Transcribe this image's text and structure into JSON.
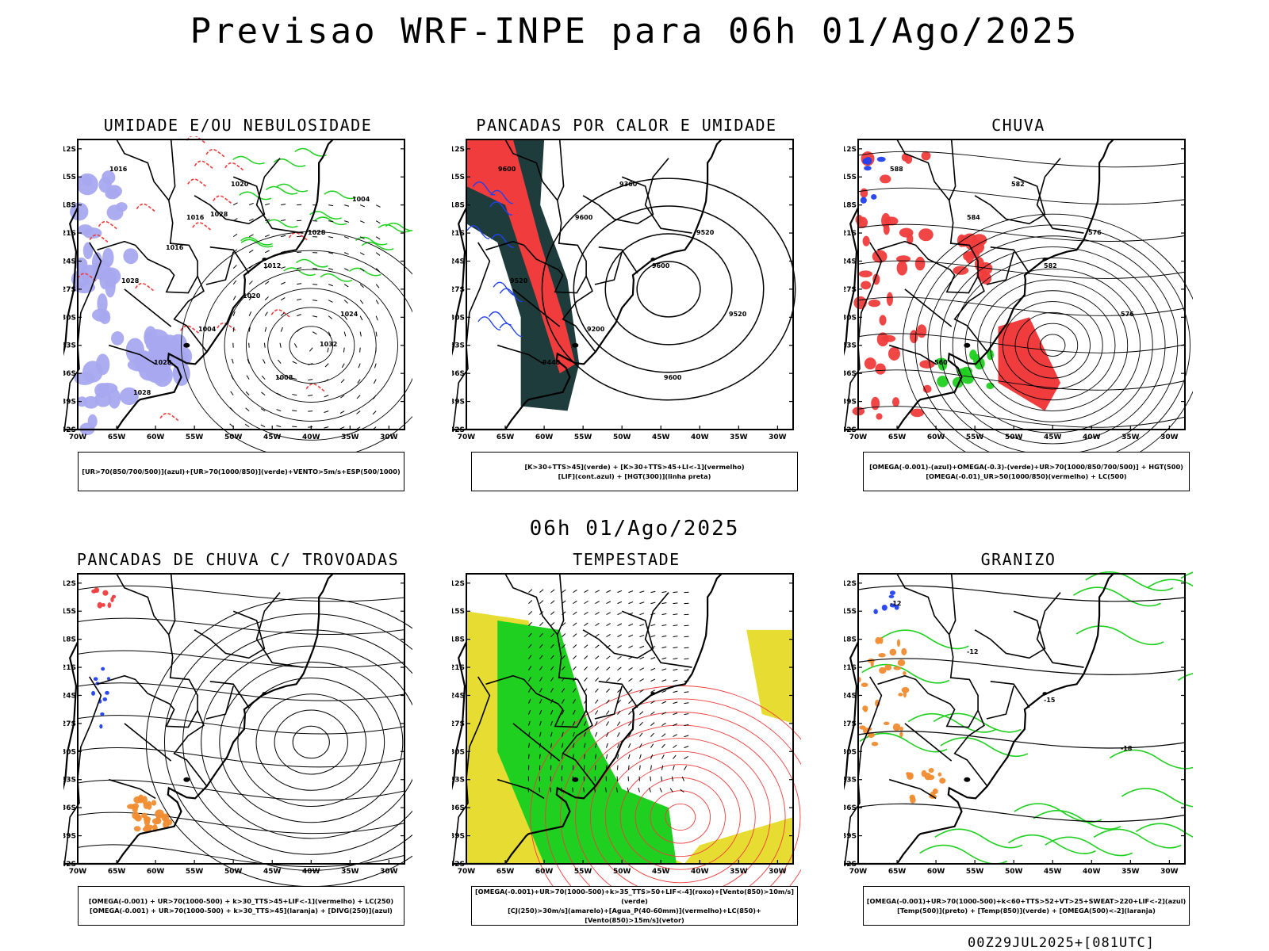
{
  "main_title": "Previsao WRF-INPE  para 06h 01/Ago/2025",
  "mid_title": "06h 01/Ago/2025",
  "footer": "00Z29JUL2025+[081UTC]",
  "lat_ticks": [
    "12S",
    "15S",
    "18S",
    "21S",
    "24S",
    "27S",
    "30S",
    "33S",
    "36S",
    "39S",
    "42S"
  ],
  "lon_ticks": [
    "70W",
    "65W",
    "60W",
    "55W",
    "50W",
    "45W",
    "40W",
    "35W",
    "30W"
  ],
  "colors": {
    "red": "#f03c3c",
    "green": "#20d020",
    "blue": "#2040f0",
    "lavender": "#a8a8f0",
    "dark_teal": "#1e3c3c",
    "yellow": "#e6dc32",
    "orange": "#f08c30"
  },
  "panels": [
    {
      "id": "umidade",
      "title": "UMIDADE E/OU NEBULOSIDADE",
      "legend": [
        "[UR>70(850/700/500)](azul)+[UR>70(1000/850)](verde)+VENTO>5m/s+ESP(500/1000)"
      ],
      "contour_labels": [
        "1016",
        "1016",
        "1012",
        "1024",
        "1028",
        "1020",
        "1028",
        "1028",
        "1004",
        "1008",
        "1004",
        "1016",
        "1020",
        "1032",
        "1028",
        "1028"
      ]
    },
    {
      "id": "pancadas_calor",
      "title": "PANCADAS POR CALOR E UMIDADE",
      "legend": [
        "[K>30+TTS>45](verde) + [K>30+TTS>45+LI<-1](vermelho)",
        "[LIF](cont.azul) + [HGT(300)](linha preta)"
      ],
      "contour_labels": [
        "9600",
        "9600",
        "9600",
        "9520",
        "9440",
        "9360",
        "9520",
        "9520",
        "9200",
        "9600"
      ]
    },
    {
      "id": "chuva",
      "title": "CHUVA",
      "legend": [
        "[OMEGA(-0.001)-(azul)+OMEGA(-0.3)-(verde)+UR>70(1000/850/700/500)] + HGT(500)",
        "[OMEGA(-0.01)_UR>50(1000/850)(vermelho) + LC(500)"
      ],
      "contour_labels": [
        "588",
        "584",
        "582",
        "576",
        "560",
        "582",
        "576"
      ]
    },
    {
      "id": "trovoadas",
      "title": "PANCADAS DE CHUVA C/ TROVOADAS",
      "legend": [
        "[OMEGA(-0.001) + UR>70(1000-500) + k>30_TTS>45+LIF<-1](vermelho) + LC(250)",
        "[OMEGA(-0.001) + UR>70(1000-500) + k>30_TTS>45](laranja) + [DIVG(250)](azul)"
      ],
      "contour_labels": []
    },
    {
      "id": "tempestade",
      "title": "TEMPESTADE",
      "legend": [
        "[OMEGA(-0.001)+UR>70(1000-500)+k>35_TTS>50+LIF<-4](roxo)+[Vento(850)>10m/s](verde)",
        "[CJ(250)>30m/s](amarelo)+[Agua_P(40-60mm)](vermelho)+LC(850)+[Vento(850)>15m/s](vetor)"
      ],
      "contour_labels": []
    },
    {
      "id": "granizo",
      "title": "GRANIZO",
      "legend": [
        "[OMEGA(-0.001)+UR>70(1000-500)+k<60+TTS>52+VT>25+SWEAT>220+LIF<-2](azul)",
        "[Temp(500)](preto) + [Temp(850)](verde) + [OMEGA(500)<-2](laranja)"
      ],
      "contour_labels": [
        "-12",
        "-12",
        "-15",
        "-18"
      ]
    }
  ]
}
